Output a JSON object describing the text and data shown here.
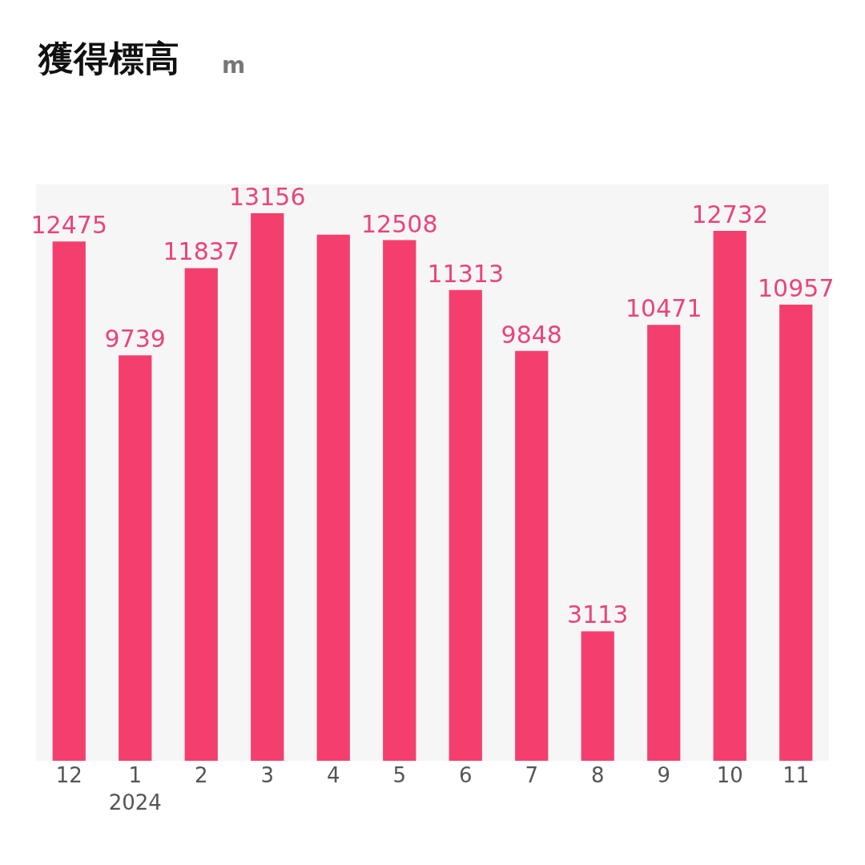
{
  "chart_data": {
    "type": "bar",
    "title": "獲得標高",
    "subtitle": "m",
    "categories": [
      "12",
      "1\n2024",
      "2",
      "3",
      "4",
      "5",
      "6",
      "7",
      "8",
      "9",
      "10",
      "11"
    ],
    "values": [
      12475,
      9739,
      11837,
      13156,
      12640,
      12508,
      11313,
      9848,
      3113,
      10471,
      12732,
      10957
    ],
    "value_labels": [
      "12475",
      "9739",
      "11837",
      "13156",
      null,
      "12508",
      "11313",
      "9848",
      "3113",
      "10471",
      "12732",
      "10957"
    ],
    "color": "#f43f6e",
    "grid": false,
    "legend": false
  }
}
